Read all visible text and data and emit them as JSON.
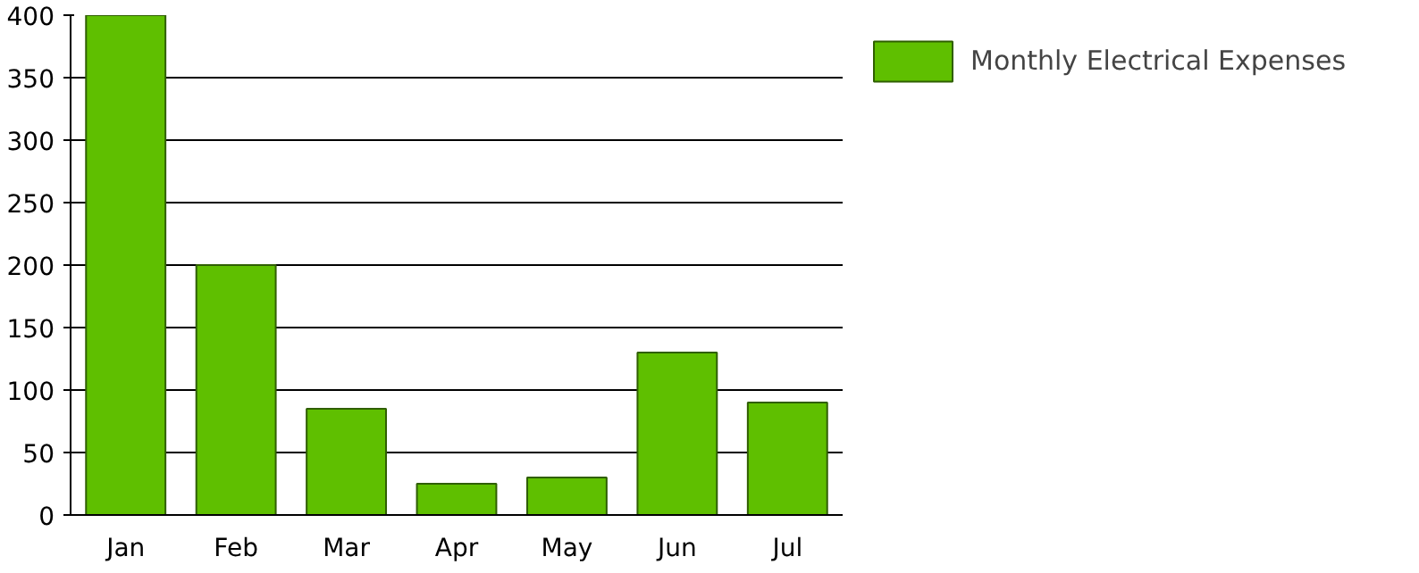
{
  "chart_data": {
    "type": "bar",
    "categories": [
      "Jan",
      "Feb",
      "Mar",
      "Apr",
      "May",
      "Jun",
      "Jul"
    ],
    "series": [
      {
        "name": "Monthly Electrical Expenses",
        "color": "#5fbf00",
        "values": [
          400,
          200,
          85,
          25,
          30,
          130,
          90
        ]
      }
    ],
    "ylim": [
      0,
      400
    ],
    "yticks": [
      0,
      50,
      100,
      150,
      200,
      250,
      300,
      350,
      400
    ],
    "grid": "y",
    "legend": "right"
  }
}
